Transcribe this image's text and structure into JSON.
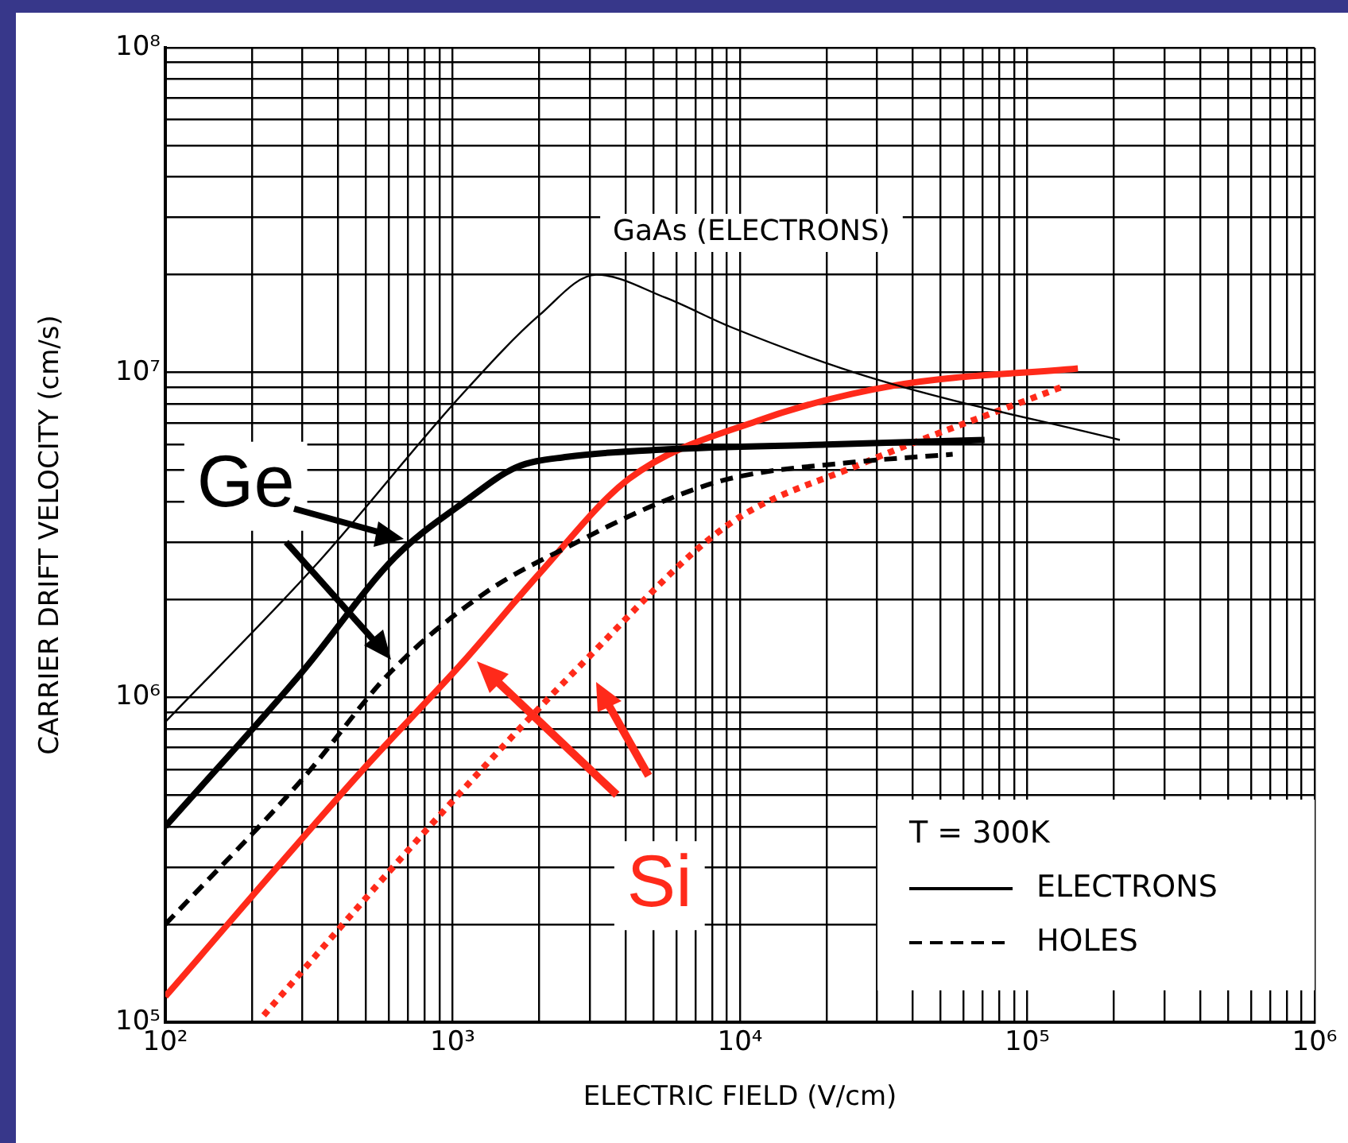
{
  "chart_data": {
    "type": "line",
    "xlabel": "ELECTRIC FIELD (V/cm)",
    "ylabel": "CARRIER DRIFT VELOCITY (cm/s)",
    "legend_title": "T = 300K",
    "legend": "bottom right",
    "grid": true,
    "log": "xy",
    "marker": "none",
    "xlim": [
      100,
      1000000
    ],
    "ylim": [
      100000,
      100000000
    ],
    "xticks": [
      {
        "value": 100,
        "label": "10²"
      },
      {
        "value": 200,
        "label": null
      },
      {
        "value": 300,
        "label": null
      },
      {
        "value": 400,
        "label": null
      },
      {
        "value": 500,
        "label": null
      },
      {
        "value": 600,
        "label": null
      },
      {
        "value": 700,
        "label": null
      },
      {
        "value": 800,
        "label": null
      },
      {
        "value": 900,
        "label": null
      },
      {
        "value": 1000,
        "label": "10³"
      },
      {
        "value": 2000,
        "label": null
      },
      {
        "value": 3000,
        "label": null
      },
      {
        "value": 4000,
        "label": null
      },
      {
        "value": 5000,
        "label": null
      },
      {
        "value": 6000,
        "label": null
      },
      {
        "value": 7000,
        "label": null
      },
      {
        "value": 8000,
        "label": null
      },
      {
        "value": 9000,
        "label": null
      },
      {
        "value": 10000,
        "label": "10⁴"
      },
      {
        "value": 20000,
        "label": null
      },
      {
        "value": 30000,
        "label": null
      },
      {
        "value": 40000,
        "label": null
      },
      {
        "value": 50000,
        "label": null
      },
      {
        "value": 60000,
        "label": null
      },
      {
        "value": 70000,
        "label": null
      },
      {
        "value": 80000,
        "label": null
      },
      {
        "value": 90000,
        "label": null
      },
      {
        "value": 100000,
        "label": "10⁵"
      },
      {
        "value": 200000,
        "label": null
      },
      {
        "value": 300000,
        "label": null
      },
      {
        "value": 400000,
        "label": null
      },
      {
        "value": 500000,
        "label": null
      },
      {
        "value": 600000,
        "label": null
      },
      {
        "value": 700000,
        "label": null
      },
      {
        "value": 800000,
        "label": null
      },
      {
        "value": 900000,
        "label": null
      },
      {
        "value": 1000000,
        "label": "10⁶"
      }
    ],
    "yticks": [
      {
        "value": 100000,
        "label": "10⁵"
      },
      {
        "value": 200000,
        "label": null
      },
      {
        "value": 300000,
        "label": null
      },
      {
        "value": 400000,
        "label": null
      },
      {
        "value": 500000,
        "label": null
      },
      {
        "value": 600000,
        "label": null
      },
      {
        "value": 700000,
        "label": null
      },
      {
        "value": 800000,
        "label": null
      },
      {
        "value": 900000,
        "label": null
      },
      {
        "value": 1000000,
        "label": "10⁶"
      },
      {
        "value": 2000000,
        "label": null
      },
      {
        "value": 3000000,
        "label": null
      },
      {
        "value": 4000000,
        "label": null
      },
      {
        "value": 5000000,
        "label": null
      },
      {
        "value": 6000000,
        "label": null
      },
      {
        "value": 7000000,
        "label": null
      },
      {
        "value": 8000000,
        "label": null
      },
      {
        "value": 9000000,
        "label": null
      },
      {
        "value": 10000000,
        "label": "10⁷"
      },
      {
        "value": 20000000,
        "label": null
      },
      {
        "value": 30000000,
        "label": null
      },
      {
        "value": 40000000,
        "label": null
      },
      {
        "value": 50000000,
        "label": null
      },
      {
        "value": 60000000,
        "label": null
      },
      {
        "value": 70000000,
        "label": null
      },
      {
        "value": 80000000,
        "label": null
      },
      {
        "value": 90000000,
        "label": null
      },
      {
        "value": 100000000,
        "label": "10⁸"
      }
    ],
    "series": [
      {
        "color": "#000000",
        "line_style": "solid",
        "x": [
          100,
          340,
          1070,
          2000,
          3160,
          5500,
          9300,
          29000,
          210000
        ],
        "values": [
          840000,
          2600000,
          8500000,
          15000000,
          20000000,
          17000000,
          13800000,
          9600000,
          6200000
        ]
      },
      {
        "name": "ELECTRONS",
        "color": "#000000",
        "line_style": "solid",
        "x": [
          100,
          300,
          630,
          1100,
          1660,
          2500,
          5600,
          20000,
          71000
        ],
        "values": [
          400000,
          1200000,
          2700000,
          4000000,
          5100000,
          5500000,
          5800000,
          6000000,
          6200000
        ]
      },
      {
        "name": "HOLES",
        "color": "#000000",
        "line_style": "dashed",
        "x": [
          100,
          300,
          610,
          1300,
          2700,
          5000,
          9100,
          25000,
          55000
        ],
        "values": [
          200000,
          560000,
          1200000,
          2100000,
          3000000,
          3900000,
          4700000,
          5300000,
          5600000
        ]
      },
      {
        "color": "#ff2a1a",
        "line_style": "solid",
        "x": [
          100,
          480,
          1100,
          2000,
          4100,
          11500,
          34000,
          150000
        ],
        "values": [
          120000,
          590000,
          1300000,
          2400000,
          4700000,
          7100000,
          9100000,
          10300000
        ]
      },
      {
        "color": "#ff2a1a",
        "line_style": "dotted",
        "x": [
          220,
          830,
          2900,
          9100,
          26000,
          135000
        ],
        "values": [
          105000,
          400000,
          1300000,
          3400000,
          5200000,
          9100000
        ]
      }
    ],
    "annotations": [
      "GaAs (ELECTRONS)",
      "Ge",
      "Si"
    ]
  }
}
